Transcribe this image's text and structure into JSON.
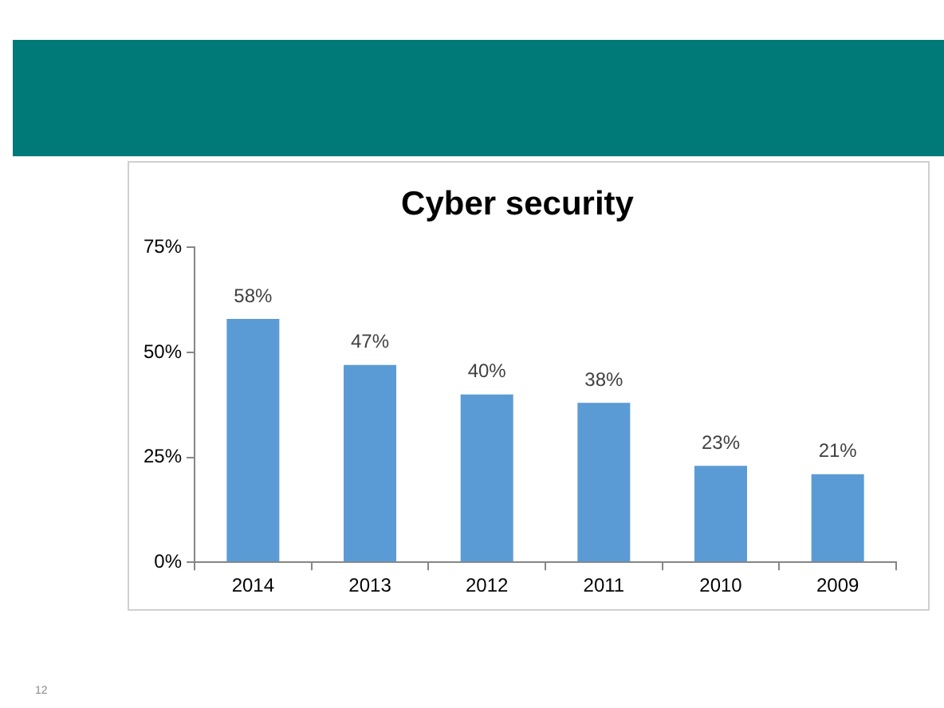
{
  "chart_data": {
    "type": "bar",
    "title": "Cyber security",
    "categories": [
      "2014",
      "2013",
      "2012",
      "2011",
      "2010",
      "2009"
    ],
    "values": [
      58,
      47,
      40,
      38,
      23,
      21
    ],
    "value_labels": [
      "58%",
      "47%",
      "40%",
      "38%",
      "23%",
      "21%"
    ],
    "color": "#5b9bd5",
    "ylim": [
      0,
      75
    ],
    "yticks": [
      {
        "value": 0,
        "label": "0%"
      },
      {
        "value": 25,
        "label": "25%"
      },
      {
        "value": 50,
        "label": "50%"
      },
      {
        "value": 75,
        "label": "75%"
      }
    ],
    "grid": false,
    "legend": false,
    "annotations": [
      "12"
    ]
  }
}
